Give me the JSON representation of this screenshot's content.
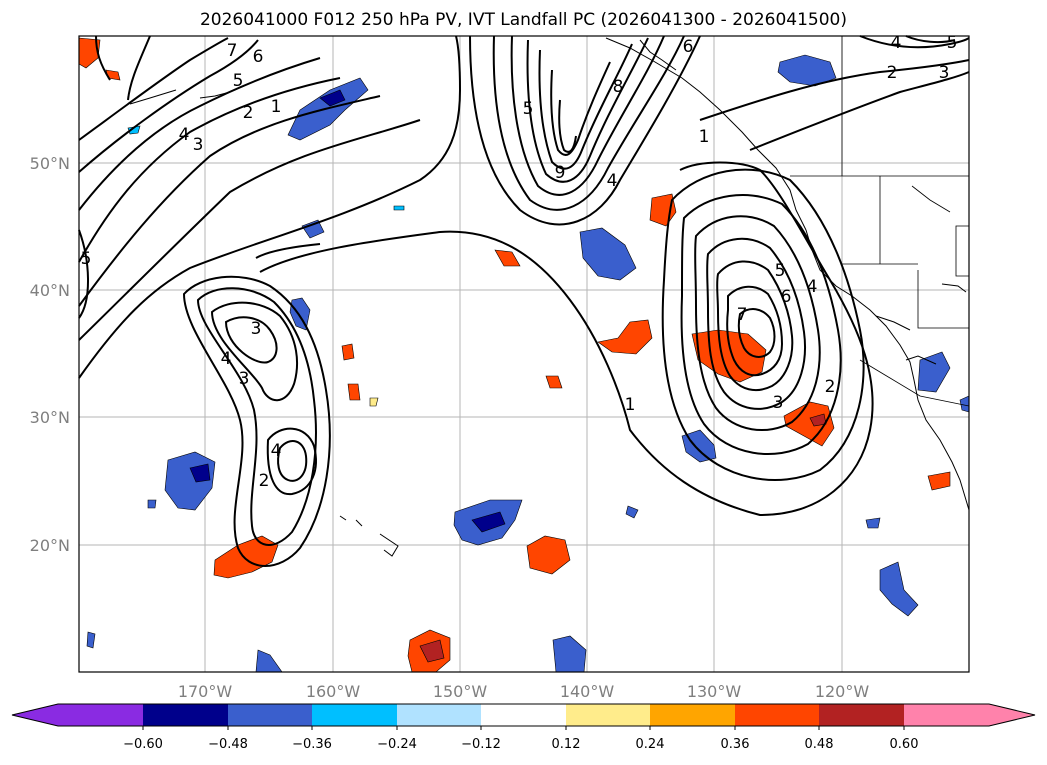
{
  "title": "2026041000 F012 250 hPa PV, IVT Landfall PC (2026041300 - 2026041500)",
  "lat_labels": [
    "50°N",
    "40°N",
    "30°N",
    "20°N"
  ],
  "lon_labels": [
    "170°W",
    "160°W",
    "150°W",
    "140°W",
    "130°W",
    "120°W"
  ],
  "colorbar": {
    "ticks": [
      "−0.60",
      "−0.48",
      "−0.36",
      "−0.24",
      "−0.12",
      "0.12",
      "0.24",
      "0.36",
      "0.48",
      "0.60"
    ],
    "colors": [
      "#8a2be2",
      "#00008b",
      "#3a5fcd",
      "#00bfff",
      "#b0e2ff",
      "#ffffff",
      "#ffec8b",
      "#ffa500",
      "#ff4500",
      "#b22222",
      "#ff82ab"
    ]
  },
  "contour_labels": {
    "nw_7": "7",
    "nw_6": "6",
    "nw_5": "5",
    "nw_2": "2",
    "nw_1": "1",
    "nw_4": "4",
    "nw_3": "3",
    "west_5": "5",
    "gulf_5": "5",
    "gulf_8": "8",
    "gulf_9": "9",
    "gulf_4": "4",
    "gulf_6": "6",
    "gulf_1": "1",
    "ne_4": "4",
    "ne_5": "5",
    "ne_2": "2",
    "ne_3": "3",
    "cw_3a": "3",
    "cw_4": "4",
    "cw_3b": "3",
    "cw_4b": "4",
    "cw_2": "2",
    "ce_5": "5",
    "ce_4": "4",
    "ce_6": "6",
    "ce_7": "7",
    "ce_2": "2",
    "ce_3": "3",
    "ce_1": "1"
  }
}
